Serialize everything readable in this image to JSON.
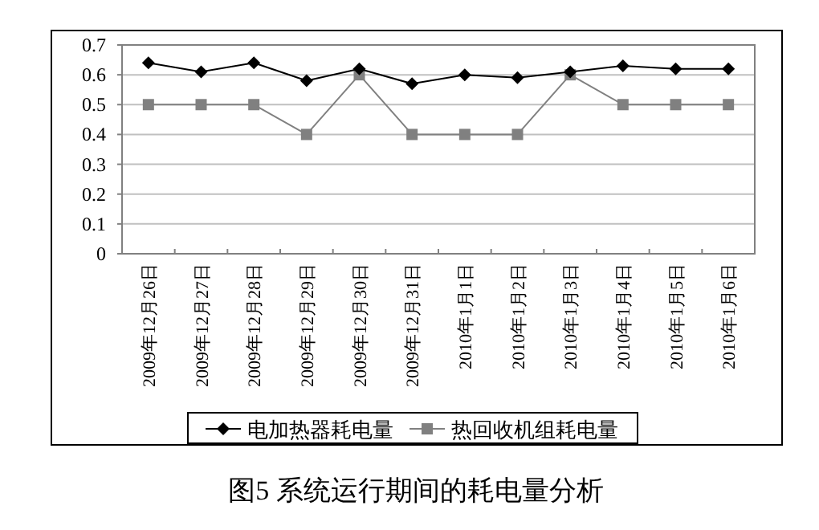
{
  "chart_data": {
    "type": "line",
    "title": "图5  系统运行期间的耗电量分析",
    "categories": [
      "2009年12月26日",
      "2009年12月27日",
      "2009年12月28日",
      "2009年12月29日",
      "2009年12月30日",
      "2009年12月31日",
      "2010年1月1日",
      "2010年1月2日",
      "2010年1月3日",
      "2010年1月4日",
      "2010年1月5日",
      "2010年1月6日"
    ],
    "series": [
      {
        "name": "电加热器耗电量",
        "color": "#000000",
        "marker": "diamond",
        "values": [
          0.64,
          0.61,
          0.64,
          0.58,
          0.62,
          0.57,
          0.6,
          0.59,
          0.61,
          0.63,
          0.62,
          0.62
        ]
      },
      {
        "name": "热回收机组耗电量",
        "color": "#808080",
        "marker": "square",
        "values": [
          0.5,
          0.5,
          0.5,
          0.4,
          0.6,
          0.4,
          0.4,
          0.4,
          0.6,
          0.5,
          0.5,
          0.5
        ]
      }
    ],
    "ylim": [
      0,
      0.7
    ],
    "yticks": [
      0,
      0.1,
      0.2,
      0.3,
      0.4,
      0.5,
      0.6,
      0.7
    ],
    "grid": "y",
    "legend": "bottom"
  }
}
